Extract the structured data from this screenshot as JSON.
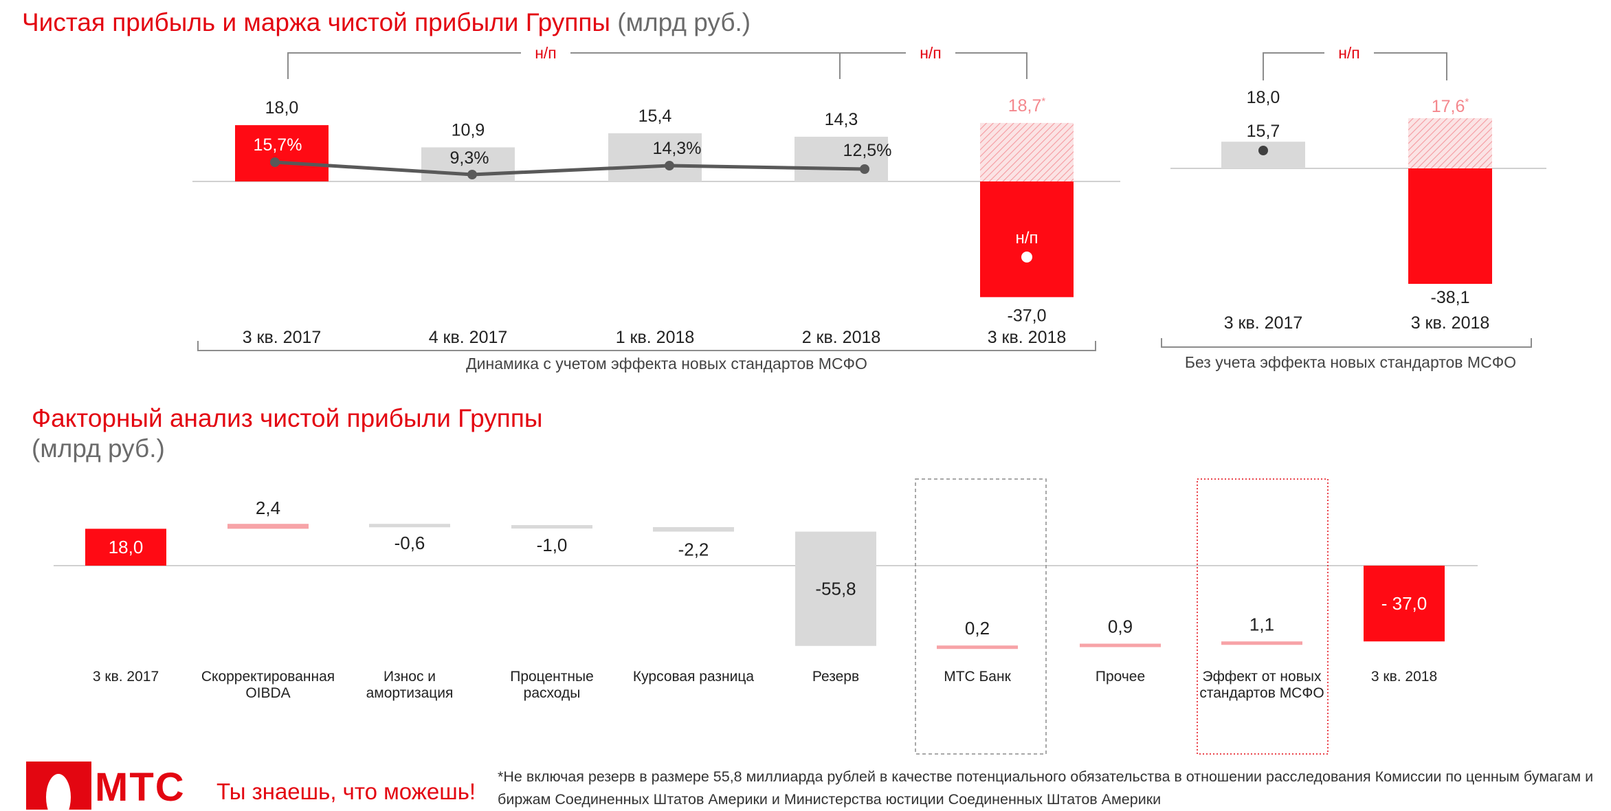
{
  "header": {
    "title_main": "Чистая прибыль и маржа чистой прибыли Группы",
    "title_unit": "(млрд руб.)"
  },
  "chart_data": [
    {
      "type": "bar",
      "title": "Чистая прибыль и маржа чистой прибыли Группы",
      "unit": "(млрд руб.)",
      "group_label": "Динамика с учетом эффекта новых стандартов МСФО",
      "categories": [
        "3 кв. 2017",
        "4 кв. 2017",
        "1 кв. 2018",
        "2 кв. 2018",
        "3 кв. 2018"
      ],
      "values": [
        18.0,
        10.9,
        15.4,
        14.3,
        -37.0
      ],
      "value_labels": [
        "18,0",
        "10,9",
        "15,4",
        "14,3",
        "-37,0"
      ],
      "bar_colors": [
        "#ff0a14",
        "#d9d9d9",
        "#d9d9d9",
        "#d9d9d9",
        "#ff0a14"
      ],
      "margin_series": {
        "values": [
          15.7,
          9.3,
          14.3,
          12.5,
          null
        ],
        "labels": [
          "15,7%",
          "9,3%",
          "14,3%",
          "12,5%",
          "н/п"
        ]
      },
      "excluding_reserve": {
        "category": "3 кв. 2018",
        "value": 18.7,
        "label": "18,7",
        "marker": "*"
      },
      "growth_brackets": [
        {
          "from": "3 кв. 2017",
          "to": "2 кв. 2018",
          "label": "н/п"
        },
        {
          "from": "3 кв. 2017",
          "to": "3 кв. 2018",
          "label": "н/п"
        }
      ],
      "accent_color": "#e30611"
    },
    {
      "type": "bar",
      "group_label": "Без учета эффекта новых стандартов МСФО",
      "categories": [
        "3 кв. 2017",
        "3 кв. 2018"
      ],
      "values": [
        18.0,
        -38.1
      ],
      "value_labels": [
        "18,0",
        "-38,1"
      ],
      "bar_colors": [
        "#d9d9d9",
        "#ff0a14"
      ],
      "margin_series": {
        "values": [
          15.7,
          null
        ],
        "labels": [
          "15,7",
          ""
        ]
      },
      "excluding_reserve": {
        "category": "3 кв. 2018",
        "value": 17.6,
        "label": "17,6",
        "marker": "*"
      },
      "growth_brackets": [
        {
          "from": "3 кв. 2017",
          "to": "3 кв. 2018",
          "label": "н/п"
        }
      ]
    },
    {
      "type": "waterfall",
      "title": "Факторный анализ чистой прибыли Группы",
      "unit": "(млрд руб.)",
      "categories": [
        "3 кв. 2017",
        "Скорректированная OIBDA",
        "Износ и амортизация",
        "Процентные расходы",
        "Курсовая разница",
        "Резерв",
        "МТС Банк",
        "Прочее",
        "Эффект от новых стандартов МСФО",
        "3 кв. 2018"
      ],
      "category_lines": [
        [
          "3 кв. 2017"
        ],
        [
          "Скорректированная",
          "OIBDA"
        ],
        [
          "Износ и",
          "амортизация"
        ],
        [
          "Процентные",
          "расходы"
        ],
        [
          "Курсовая разница"
        ],
        [
          "Резерв"
        ],
        [
          "МТС Банк"
        ],
        [
          "Прочее"
        ],
        [
          "Эффект от новых",
          "стандартов МСФО"
        ],
        [
          "3 кв. 2018"
        ]
      ],
      "values": [
        18.0,
        2.4,
        -0.6,
        -1.0,
        -2.2,
        -55.8,
        0.2,
        0.9,
        1.1,
        -37.0
      ],
      "value_labels": [
        "18,0",
        "2,4",
        "-0,6",
        "-1,0",
        "-2,2",
        "-55,8",
        "0,2",
        "0,9",
        "1,1",
        "- 37,0"
      ],
      "kinds": [
        "total",
        "delta",
        "delta",
        "delta",
        "delta",
        "delta",
        "delta",
        "delta",
        "delta",
        "total"
      ],
      "highlighted": [
        "МТС Банк",
        "Эффект от новых стандартов МСФО"
      ]
    }
  ],
  "factor_title": {
    "main": "Факторный анализ чистой прибыли Группы",
    "unit": "(млрд руб.)"
  },
  "footer": {
    "logo_text": "МТС",
    "slogan": "Ты знаешь, что можешь!",
    "footnote": "*Не включая резерв в размере 55,8 миллиарда рублей в качестве потенциального обязательства в отношении расследования Комиссии по ценным бумагам и биржам Соединенных Штатов Америки и Министерства юстиции Соединенных Штатов Америки"
  }
}
